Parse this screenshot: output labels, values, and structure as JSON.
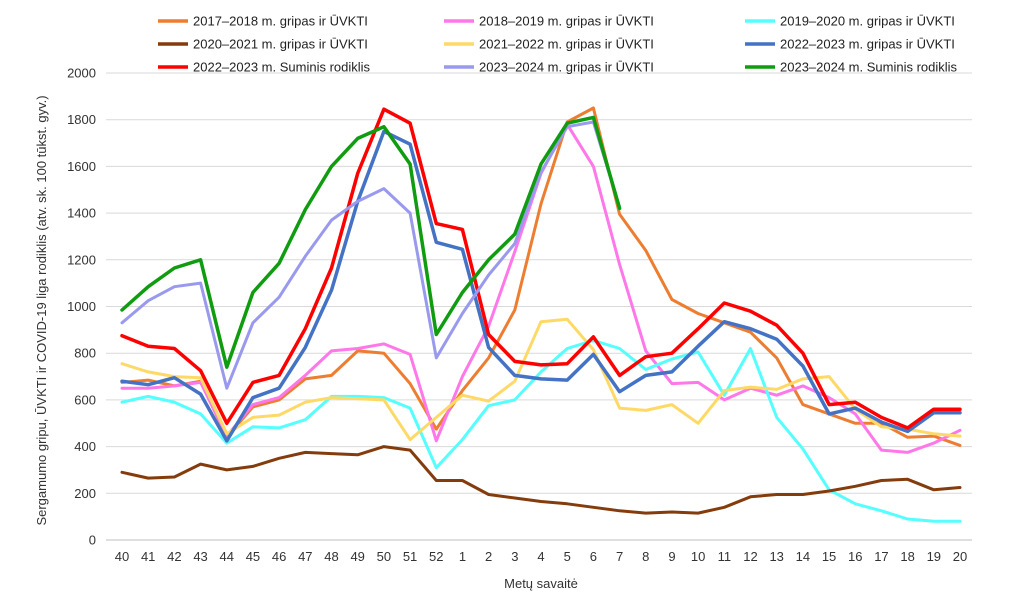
{
  "chart_data": {
    "type": "line",
    "title": "",
    "xlabel": "Metų savaitė",
    "ylabel": "Sergamumo gripu, ŪVKTI ir COVID-19 liga rodiklis (atv. sk. 100 tūkst. gyv.)",
    "ylim": [
      0,
      2000
    ],
    "yticks": [
      0,
      200,
      400,
      600,
      800,
      1000,
      1200,
      1400,
      1600,
      1800,
      2000
    ],
    "grid": "horizontal",
    "legend": "top",
    "categories": [
      "40",
      "41",
      "42",
      "43",
      "44",
      "45",
      "46",
      "47",
      "48",
      "49",
      "50",
      "51",
      "52",
      "1",
      "2",
      "3",
      "4",
      "5",
      "6",
      "7",
      "8",
      "9",
      "10",
      "11",
      "12",
      "13",
      "14",
      "15",
      "16",
      "17",
      "18",
      "19",
      "20"
    ],
    "series": [
      {
        "name": "2017–2018 m. gripas ir ŪVKTI",
        "color": "#ED7D31",
        "width": 3,
        "values": [
          675,
          685,
          660,
          680,
          440,
          570,
          600,
          690,
          705,
          810,
          800,
          670,
          475,
          640,
          780,
          985,
          1440,
          1790,
          1850,
          1395,
          1240,
          1030,
          970,
          930,
          890,
          780,
          580,
          540,
          500,
          500,
          440,
          445,
          405
        ]
      },
      {
        "name": "2018–2019 m. gripas ir ŪVKTI",
        "color": "#FF77E9",
        "width": 3,
        "values": [
          650,
          650,
          660,
          675,
          445,
          580,
          610,
          705,
          810,
          820,
          840,
          795,
          425,
          700,
          915,
          1235,
          1570,
          1780,
          1600,
          1180,
          810,
          670,
          675,
          600,
          650,
          620,
          660,
          610,
          540,
          385,
          375,
          415,
          470
        ]
      },
      {
        "name": "2019–2020 m. gripas ir ŪVKTI",
        "color": "#55FFFF",
        "width": 3,
        "values": [
          590,
          615,
          590,
          540,
          415,
          485,
          480,
          515,
          615,
          615,
          610,
          565,
          310,
          430,
          575,
          600,
          720,
          820,
          855,
          820,
          730,
          775,
          805,
          620,
          820,
          525,
          390,
          215,
          155,
          125,
          90,
          80,
          80
        ]
      },
      {
        "name": "2020–2021 m. gripas ir ŪVKTI",
        "color": "#843C0C",
        "width": 3,
        "values": [
          290,
          265,
          270,
          325,
          300,
          315,
          350,
          375,
          370,
          365,
          400,
          385,
          255,
          255,
          195,
          180,
          165,
          155,
          140,
          125,
          115,
          120,
          115,
          140,
          185,
          195,
          195,
          210,
          230,
          255,
          260,
          215,
          225
        ]
      },
      {
        "name": "2021–2022 m. gripas ir ŪVKTI",
        "color": "#FFD966",
        "width": 3,
        "values": [
          755,
          720,
          700,
          695,
          455,
          525,
          535,
          590,
          610,
          605,
          600,
          430,
          525,
          620,
          595,
          680,
          935,
          945,
          815,
          565,
          555,
          580,
          500,
          640,
          655,
          645,
          690,
          700,
          560,
          485,
          475,
          455,
          445
        ]
      },
      {
        "name": "2022–2023 m. gripas ir ŪVKTI",
        "color": "#4472C4",
        "width": 3.5,
        "values": [
          680,
          665,
          695,
          625,
          425,
          610,
          650,
          825,
          1070,
          1450,
          1750,
          1695,
          1275,
          1245,
          825,
          705,
          690,
          685,
          795,
          635,
          705,
          720,
          830,
          935,
          905,
          860,
          745,
          540,
          565,
          505,
          465,
          545,
          545
        ]
      },
      {
        "name": "2022–2023 m. Suminis rodiklis",
        "color": "#FF0000",
        "width": 3.5,
        "values": [
          875,
          830,
          820,
          725,
          500,
          675,
          705,
          905,
          1165,
          1570,
          1845,
          1785,
          1355,
          1330,
          880,
          765,
          750,
          755,
          870,
          705,
          785,
          800,
          905,
          1015,
          980,
          920,
          800,
          580,
          590,
          525,
          480,
          560,
          560
        ]
      },
      {
        "name": "2023–2024 m. gripas ir ŪVKTI",
        "color": "#9999EE",
        "width": 3,
        "values": [
          930,
          1025,
          1085,
          1100,
          650,
          930,
          1040,
          1215,
          1370,
          1450,
          1505,
          1400,
          780,
          970,
          1135,
          1270,
          1575,
          1770,
          1790,
          1425,
          null,
          null,
          null,
          null,
          null,
          null,
          null,
          null,
          null,
          null,
          null,
          null,
          null
        ]
      },
      {
        "name": "2023–2024 m. Suminis rodiklis",
        "color": "#109C10",
        "width": 3.5,
        "values": [
          985,
          1085,
          1165,
          1200,
          740,
          1060,
          1185,
          1415,
          1600,
          1720,
          1770,
          1610,
          880,
          1060,
          1200,
          1310,
          1610,
          1785,
          1810,
          1420,
          null,
          null,
          null,
          null,
          null,
          null,
          null,
          null,
          null,
          null,
          null,
          null,
          null
        ]
      }
    ]
  }
}
